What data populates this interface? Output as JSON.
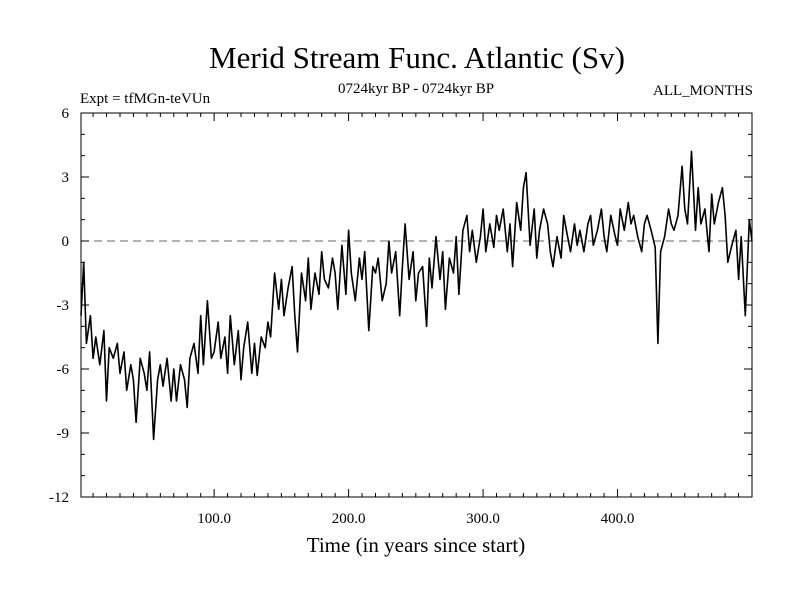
{
  "chart_data": {
    "type": "line",
    "title": "Merid Stream Func. Atlantic (Sv)",
    "experiment_label": "Expt = tfMGn-teVUn",
    "period_label": "0724kyr BP - 0724kyr BP",
    "months_label": "ALL_MONTHS",
    "xlabel": "Time (in years since start)",
    "ylabel": "",
    "xlim": [
      1,
      500
    ],
    "ylim": [
      -12,
      6
    ],
    "xticks": [
      100,
      200,
      300,
      400
    ],
    "xtick_labels": [
      "100.0",
      "200.0",
      "300.0",
      "400.0"
    ],
    "yticks": [
      6,
      3,
      0,
      -3,
      -6,
      -9,
      -12
    ],
    "ytick_labels": [
      "6",
      "3",
      "0",
      "-3",
      "-6",
      "-9",
      "-12"
    ],
    "reference_line": {
      "y": 0,
      "style": "dashed",
      "color": "#666666"
    },
    "line_color": "#000000",
    "grid": false,
    "series": [
      {
        "x": [
          1,
          3,
          5,
          8,
          10,
          12,
          15,
          18,
          20,
          22,
          25,
          28,
          30,
          33,
          35,
          38,
          40,
          42,
          45,
          48,
          50,
          52,
          55,
          58,
          60,
          62,
          65,
          68,
          70,
          72,
          75,
          78,
          80,
          82,
          85,
          88,
          90,
          92,
          95,
          98,
          100,
          103,
          105,
          108,
          110,
          112,
          115,
          118,
          120,
          122,
          125,
          128,
          130,
          132,
          135,
          138,
          140,
          142,
          145,
          148,
          150,
          152,
          155,
          158,
          160,
          162,
          165,
          168,
          170,
          172,
          175,
          178,
          180,
          182,
          185,
          188,
          190,
          192,
          195,
          198,
          200,
          202,
          205,
          208,
          210,
          212,
          215,
          218,
          220,
          222,
          225,
          228,
          230,
          232,
          235,
          238,
          240,
          242,
          245,
          248,
          250,
          252,
          255,
          258,
          260,
          262,
          265,
          268,
          270,
          272,
          275,
          278,
          280,
          282,
          285,
          288,
          290,
          292,
          295,
          298,
          300,
          302,
          305,
          308,
          310,
          312,
          315,
          318,
          320,
          322,
          325,
          328,
          330,
          332,
          335,
          338,
          340,
          342,
          345,
          348,
          350,
          352,
          355,
          358,
          360,
          362,
          365,
          368,
          370,
          372,
          375,
          378,
          380,
          382,
          385,
          388,
          390,
          392,
          395,
          398,
          400,
          402,
          405,
          408,
          410,
          412,
          415,
          418,
          420,
          422,
          425,
          428,
          430,
          432,
          435,
          438,
          440,
          442,
          445,
          448,
          450,
          452,
          455,
          458,
          460,
          462,
          465,
          468,
          470,
          472,
          475,
          478,
          480,
          482,
          485,
          488,
          490,
          492,
          495,
          498,
          500
        ],
        "values": [
          -3.5,
          -1,
          -4.8,
          -3.5,
          -5.5,
          -4.5,
          -5.8,
          -4.2,
          -7.5,
          -5,
          -5.5,
          -4.8,
          -6.2,
          -5.2,
          -7,
          -5.8,
          -6.5,
          -8.5,
          -5.5,
          -6.2,
          -7,
          -5.2,
          -9.3,
          -6.5,
          -5.8,
          -6.8,
          -5.5,
          -7.5,
          -6,
          -7.5,
          -5.8,
          -6.5,
          -7.8,
          -5.5,
          -4.8,
          -6.2,
          -3.5,
          -5.8,
          -2.8,
          -5.5,
          -5.2,
          -3.8,
          -5.5,
          -4.5,
          -6.2,
          -3.5,
          -5.8,
          -4.2,
          -6.5,
          -5,
          -3.8,
          -6.2,
          -4.8,
          -6.3,
          -4.5,
          -5,
          -3.8,
          -4.5,
          -1.5,
          -3.2,
          -1.8,
          -3.5,
          -2.2,
          -1.2,
          -3.5,
          -5.2,
          -1.5,
          -2.8,
          -0.8,
          -3.2,
          -1.5,
          -2.5,
          -0.5,
          -1.8,
          -2.2,
          -0.8,
          -1.5,
          -3.2,
          -0.2,
          -2.5,
          0.5,
          -1.5,
          -2.8,
          -0.8,
          -1.8,
          -0.5,
          -4.2,
          -1.2,
          -1.5,
          -0.8,
          -2.8,
          -2,
          0,
          -1.5,
          -0.5,
          -3.5,
          -1.2,
          0.8,
          -1.8,
          -0.5,
          -2.8,
          -1.5,
          -1.2,
          -4,
          -0.8,
          -2.2,
          0.2,
          -1.8,
          -0.5,
          -3.2,
          -0.8,
          -1.5,
          0.2,
          -2.5,
          0.5,
          1.2,
          -0.5,
          0.5,
          -1,
          0.2,
          1.5,
          -0.5,
          0.8,
          -0.3,
          1.2,
          0.5,
          1.5,
          -0.5,
          0.8,
          -1.2,
          1.8,
          0.5,
          2.5,
          3.2,
          -0.2,
          1.5,
          -0.8,
          0.5,
          1.5,
          0.8,
          -0.5,
          -1.2,
          0.2,
          -0.8,
          1.2,
          0.5,
          -0.5,
          0.8,
          -0.2,
          0.5,
          -0.5,
          0.8,
          1.2,
          -0.2,
          0.5,
          1.5,
          0.2,
          -0.5,
          1.2,
          0.3,
          -0.2,
          1.5,
          0.5,
          1.8,
          0.8,
          1.2,
          0.2,
          -0.5,
          0.8,
          1.2,
          0.5,
          -0.3,
          -4.8,
          -0.5,
          0.2,
          1.5,
          0.8,
          0.5,
          1.2,
          3.5,
          1.5,
          0.8,
          4.2,
          0.5,
          2.5,
          0.8,
          1.5,
          -0.5,
          2.2,
          0.8,
          1.8,
          2.5,
          1.2,
          -1,
          -0.2,
          0.5,
          -1.8,
          0.2,
          -3.5,
          1,
          0
        ]
      }
    ]
  }
}
